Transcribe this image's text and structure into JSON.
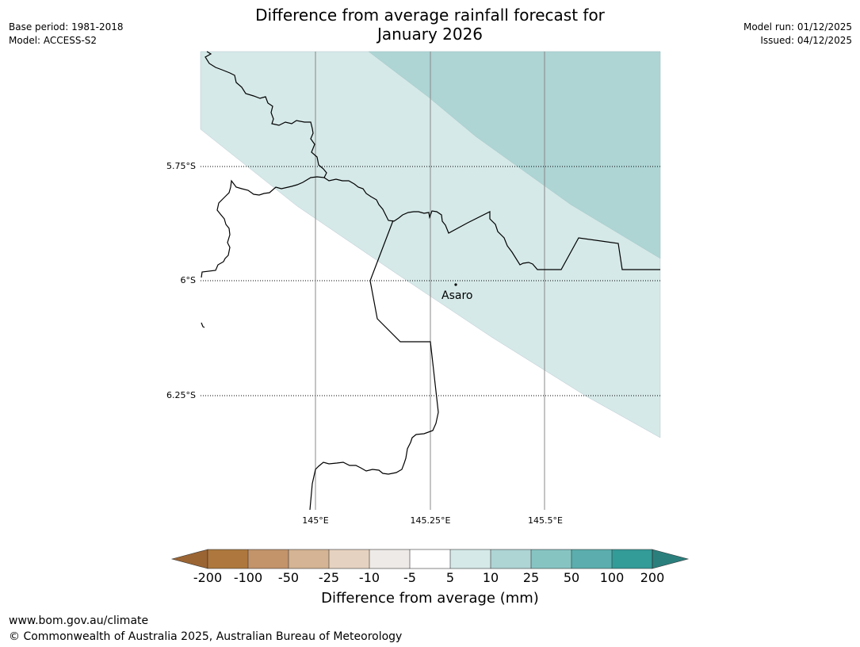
{
  "meta": {
    "base_period": "Base period: 1981-2018",
    "model": "Model: ACCESS-S2",
    "model_run": "Model run: 01/12/2025",
    "issued": "Issued: 04/12/2025"
  },
  "title": {
    "line1": "Difference from average rainfall forecast for",
    "line2": "January 2026"
  },
  "map": {
    "latitude_labels": [
      "5.75°S",
      "6°S",
      "6.25°S"
    ],
    "longitude_labels": [
      "145°E",
      "145.25°E",
      "145.5°E"
    ],
    "place": {
      "name": "Asaro"
    },
    "colors": {
      "band_5_10": "#d5e9e8",
      "band_10_25": "#aed4d4",
      "border": "#000000",
      "gridline": "#888888"
    }
  },
  "colorbar": {
    "title": "Difference from average (mm)",
    "ticks": [
      "-200",
      "-100",
      "-50",
      "-25",
      "-10",
      "-5",
      "5",
      "10",
      "25",
      "50",
      "100",
      "200"
    ],
    "colors": [
      "#9b6433",
      "#ae773d",
      "#c3936a",
      "#d4b494",
      "#e6d2c0",
      "#eeeae7",
      "#ffffff",
      "#d5e9e8",
      "#aed4d4",
      "#86c4c2",
      "#5caeae",
      "#339b98",
      "#2a7f7d"
    ]
  },
  "footer": {
    "url": "www.bom.gov.au/climate",
    "copyright": "© Commonwealth of Australia 2025, Australian Bureau of Meteorology"
  }
}
